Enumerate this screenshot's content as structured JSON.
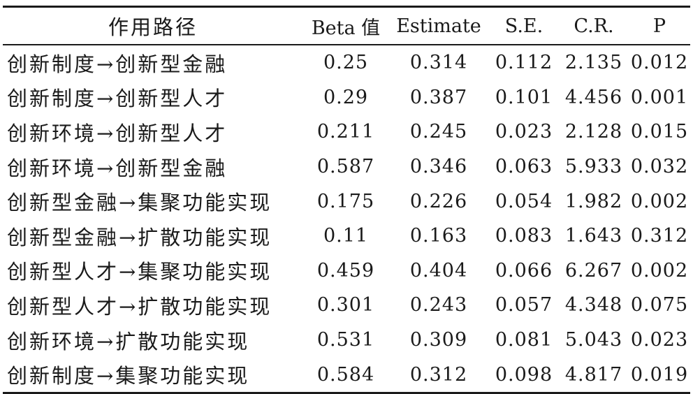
{
  "table": {
    "headers": {
      "path": "作用路径",
      "beta": "Beta 值",
      "estimate": "Estimate",
      "se": "S.E.",
      "cr": "C.R.",
      "p": "P"
    },
    "rows": [
      {
        "path": "创新制度→创新型金融",
        "beta": "0.25",
        "estimate": "0.314",
        "se": "0.112",
        "cr": "2.135",
        "p": "0.012"
      },
      {
        "path": "创新制度→创新型人才",
        "beta": "0.29",
        "estimate": "0.387",
        "se": "0.101",
        "cr": "4.456",
        "p": "0.001"
      },
      {
        "path": "创新环境→创新型人才",
        "beta": "0.211",
        "estimate": "0.245",
        "se": "0.023",
        "cr": "2.128",
        "p": "0.015"
      },
      {
        "path": "创新环境→创新型金融",
        "beta": "0.587",
        "estimate": "0.346",
        "se": "0.063",
        "cr": "5.933",
        "p": "0.032"
      },
      {
        "path": "创新型金融→集聚功能实现",
        "beta": "0.175",
        "estimate": "0.226",
        "se": "0.054",
        "cr": "1.982",
        "p": "0.002"
      },
      {
        "path": "创新型金融→扩散功能实现",
        "beta": "0.11",
        "estimate": "0.163",
        "se": "0.083",
        "cr": "1.643",
        "p": "0.312"
      },
      {
        "path": "创新型人才→集聚功能实现",
        "beta": "0.459",
        "estimate": "0.404",
        "se": "0.066",
        "cr": "6.267",
        "p": "0.002"
      },
      {
        "path": "创新型人才→扩散功能实现",
        "beta": "0.301",
        "estimate": "0.243",
        "se": "0.057",
        "cr": "4.348",
        "p": "0.075"
      },
      {
        "path": "创新环境→扩散功能实现",
        "beta": "0.531",
        "estimate": "0.309",
        "se": "0.081",
        "cr": "5.043",
        "p": "0.023"
      },
      {
        "path": "创新制度→集聚功能实现",
        "beta": "0.584",
        "estimate": "0.312",
        "se": "0.098",
        "cr": "4.817",
        "p": "0.019"
      }
    ]
  }
}
